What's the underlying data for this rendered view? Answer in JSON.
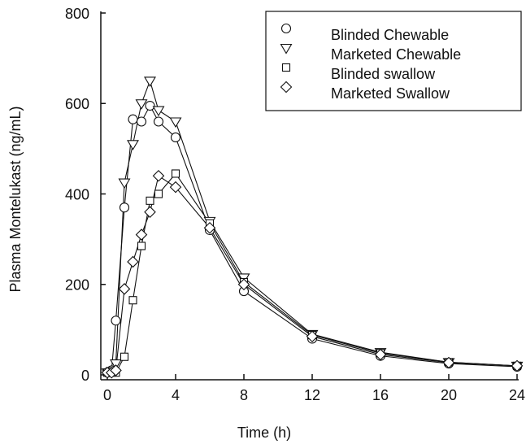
{
  "chart_data": {
    "type": "line",
    "x_label": "Time (h)",
    "y_label": "Plasma Montelukast (ng/mL)",
    "x": [
      0,
      0.25,
      0.5,
      1,
      1.5,
      2,
      2.5,
      3,
      4,
      6,
      8,
      12,
      16,
      20,
      24
    ],
    "series": [
      {
        "name": "Blinded Chewable",
        "color": "#111111",
        "marker": "circle",
        "values": [
          5,
          10,
          120,
          370,
          565,
          560,
          595,
          560,
          525,
          320,
          185,
          80,
          42,
          25,
          18
        ]
      },
      {
        "name": "Marketed Chewable",
        "color": "#111111",
        "marker": "triangle-down",
        "values": [
          5,
          8,
          25,
          425,
          510,
          600,
          650,
          585,
          560,
          340,
          215,
          90,
          50,
          28,
          20
        ]
      },
      {
        "name": "Blinded swallow",
        "color": "#111111",
        "marker": "square",
        "values": [
          5,
          5,
          5,
          40,
          165,
          285,
          385,
          400,
          445,
          335,
          205,
          88,
          48,
          28,
          20
        ]
      },
      {
        "name": "Marketed Swallow",
        "color": "#111111",
        "marker": "diamond",
        "values": [
          5,
          5,
          10,
          190,
          250,
          310,
          360,
          440,
          415,
          325,
          200,
          85,
          45,
          27,
          20
        ]
      }
    ],
    "xlim": [
      0,
      24
    ],
    "xticks": [
      0,
      4,
      8,
      12,
      16,
      20,
      24
    ],
    "ylim": [
      0,
      800
    ],
    "yticks": [
      0,
      200,
      400,
      600,
      800
    ],
    "legend": "upper right",
    "grid": false
  }
}
